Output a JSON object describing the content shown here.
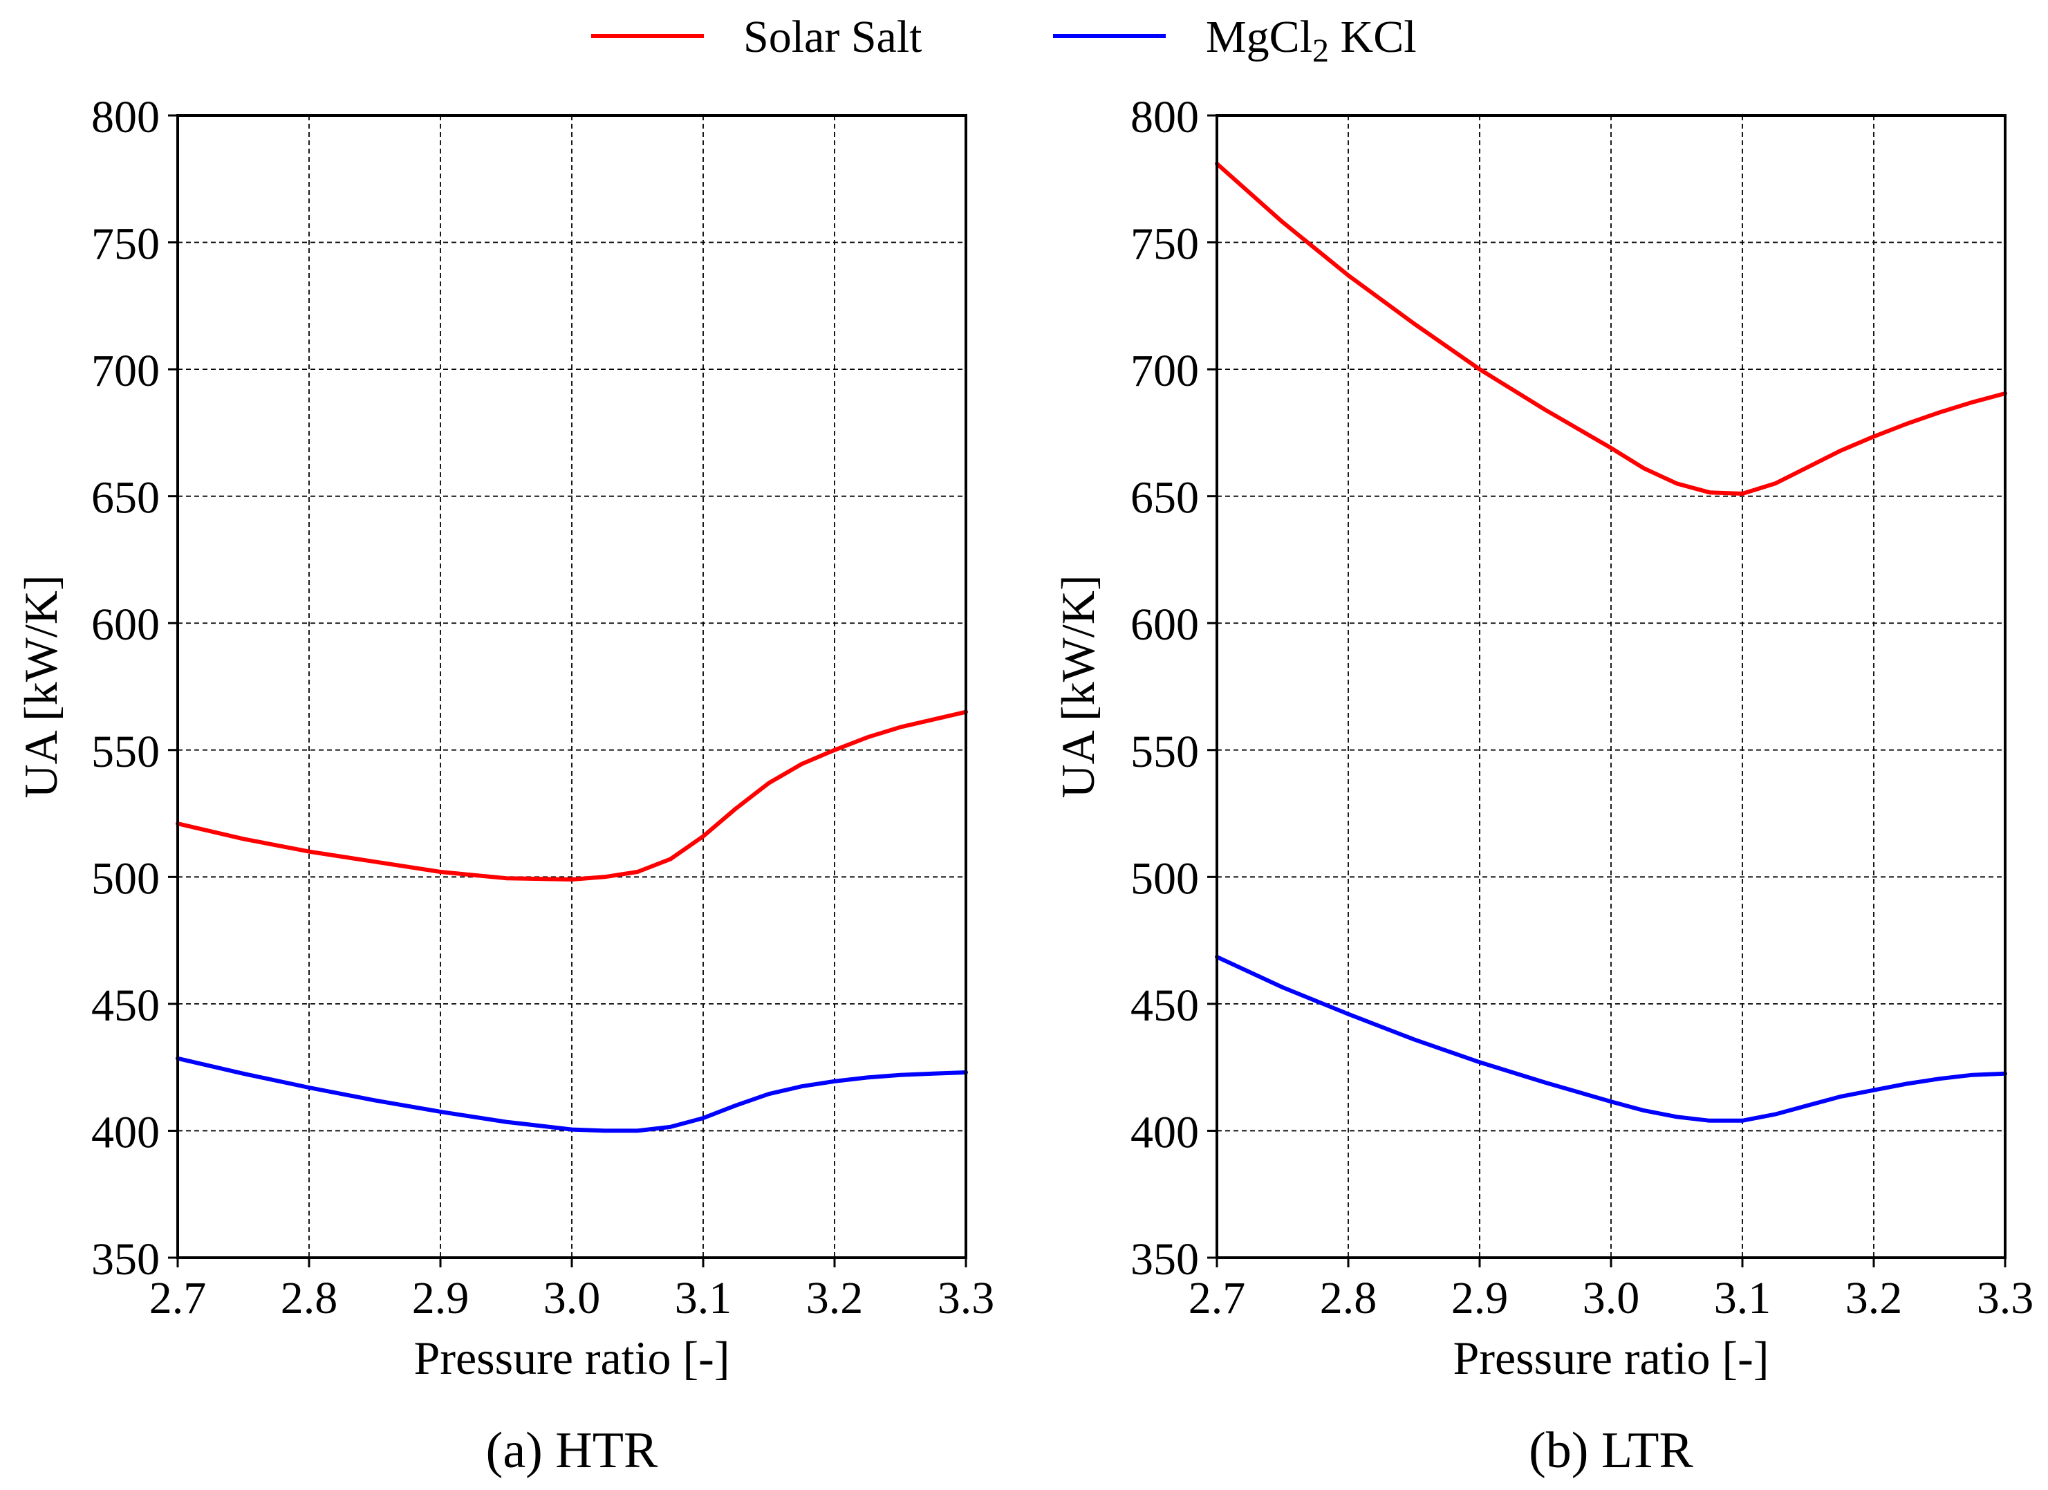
{
  "legend": {
    "items": [
      {
        "label": "Solar Salt",
        "color": "#ff0000"
      },
      {
        "label_main": "MgCl",
        "label_sub": "2",
        "label_tail": " KCl",
        "color": "#0000ff"
      }
    ]
  },
  "chart_data": [
    {
      "type": "line",
      "caption": "(a) HTR",
      "xlabel": "Pressure ratio [-]",
      "ylabel": "UA  [kW/K]",
      "xlim": [
        2.7,
        3.3
      ],
      "ylim": [
        350,
        800
      ],
      "xticks": [
        "2.7",
        "2.8",
        "2.9",
        "3.0",
        "3.1",
        "3.2",
        "3.3"
      ],
      "yticks": [
        "350",
        "400",
        "450",
        "500",
        "550",
        "600",
        "650",
        "700",
        "750",
        "800"
      ],
      "grid": true,
      "legend_position": "top-center",
      "series": [
        {
          "name": "Solar Salt",
          "color": "#ff0000",
          "x": [
            2.7,
            2.75,
            2.8,
            2.85,
            2.9,
            2.95,
            3.0,
            3.025,
            3.05,
            3.075,
            3.1,
            3.125,
            3.15,
            3.175,
            3.2,
            3.225,
            3.25,
            3.275,
            3.3
          ],
          "y": [
            521,
            515,
            510,
            506,
            502,
            499.5,
            499,
            500,
            502,
            507,
            516,
            527,
            537,
            544.5,
            550,
            555,
            559,
            562,
            565
          ]
        },
        {
          "name": "MgCl2 KCl",
          "color": "#0000ff",
          "x": [
            2.7,
            2.75,
            2.8,
            2.85,
            2.9,
            2.95,
            3.0,
            3.025,
            3.05,
            3.075,
            3.1,
            3.125,
            3.15,
            3.175,
            3.2,
            3.225,
            3.25,
            3.275,
            3.3
          ],
          "y": [
            428.5,
            422.5,
            417,
            412,
            407.5,
            403.5,
            400.5,
            400,
            400,
            401.5,
            405,
            410,
            414.5,
            417.5,
            419.5,
            421,
            422,
            422.5,
            423
          ]
        }
      ]
    },
    {
      "type": "line",
      "caption": "(b) LTR",
      "xlabel": "Pressure ratio [-]",
      "ylabel": "UA  [kW/K]",
      "xlim": [
        2.7,
        3.3
      ],
      "ylim": [
        350,
        800
      ],
      "xticks": [
        "2.7",
        "2.8",
        "2.9",
        "3.0",
        "3.1",
        "3.2",
        "3.3"
      ],
      "yticks": [
        "350",
        "400",
        "450",
        "500",
        "550",
        "600",
        "650",
        "700",
        "750",
        "800"
      ],
      "grid": true,
      "series": [
        {
          "name": "Solar Salt",
          "color": "#ff0000",
          "x": [
            2.7,
            2.75,
            2.8,
            2.85,
            2.9,
            2.95,
            3.0,
            3.025,
            3.05,
            3.075,
            3.1,
            3.125,
            3.15,
            3.175,
            3.2,
            3.225,
            3.25,
            3.275,
            3.3
          ],
          "y": [
            781,
            758,
            737,
            718,
            700,
            684,
            669,
            661,
            655,
            651.5,
            651,
            655,
            661.5,
            668,
            673.5,
            678.5,
            683,
            687,
            690.5
          ]
        },
        {
          "name": "MgCl2 KCl",
          "color": "#0000ff",
          "x": [
            2.7,
            2.75,
            2.8,
            2.85,
            2.9,
            2.95,
            3.0,
            3.025,
            3.05,
            3.075,
            3.1,
            3.125,
            3.15,
            3.175,
            3.2,
            3.225,
            3.25,
            3.275,
            3.3
          ],
          "y": [
            468.5,
            456.5,
            446,
            436,
            427,
            419,
            411.5,
            408,
            405.5,
            404,
            404,
            406.5,
            410,
            413.5,
            416,
            418.5,
            420.5,
            422,
            422.5
          ]
        }
      ]
    }
  ]
}
